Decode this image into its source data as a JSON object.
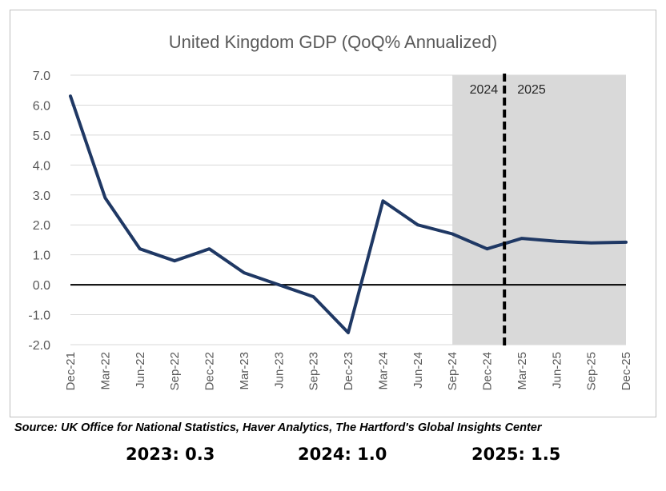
{
  "chart_data": {
    "type": "line",
    "title": "United Kingdom GDP (QoQ% Annualized)",
    "categories": [
      "Dec-21",
      "Mar-22",
      "Jun-22",
      "Sep-22",
      "Dec-22",
      "Mar-23",
      "Jun-23",
      "Sep-23",
      "Dec-23",
      "Mar-24",
      "Jun-24",
      "Sep-24",
      "Dec-24",
      "Mar-25",
      "Jun-25",
      "Sep-25",
      "Dec-25"
    ],
    "series": [
      {
        "values": [
          6.3,
          2.9,
          1.2,
          0.8,
          1.2,
          0.4,
          0.0,
          -0.4,
          -1.6,
          2.8,
          2.0,
          1.7,
          1.2,
          1.55,
          1.45,
          1.4,
          1.42
        ]
      }
    ],
    "ylim": [
      -2.0,
      7.0
    ],
    "yticks": [
      "7.0",
      "6.0",
      "5.0",
      "4.0",
      "3.0",
      "2.0",
      "1.0",
      "0.0",
      "-1.0",
      "-2.0"
    ],
    "grid": true,
    "forecast_shading": {
      "from_category": "Sep-24",
      "to_category": "Dec-25"
    },
    "period_divider": {
      "position_between": [
        "Dec-24",
        "Mar-25"
      ],
      "left_label": "2024",
      "right_label": "2025"
    },
    "colors": {
      "line": "#1f3864",
      "shade": "#d9d9d9",
      "grid": "#d9d9d9",
      "zero_line": "#000000"
    }
  },
  "source": "Source: UK Office for National Statistics, Haver Analytics, The Hartford's Global Insights Center",
  "annual_averages": [
    {
      "label": "2023: 0.3"
    },
    {
      "label": "2024: 1.0"
    },
    {
      "label": "2025: 1.5"
    }
  ]
}
